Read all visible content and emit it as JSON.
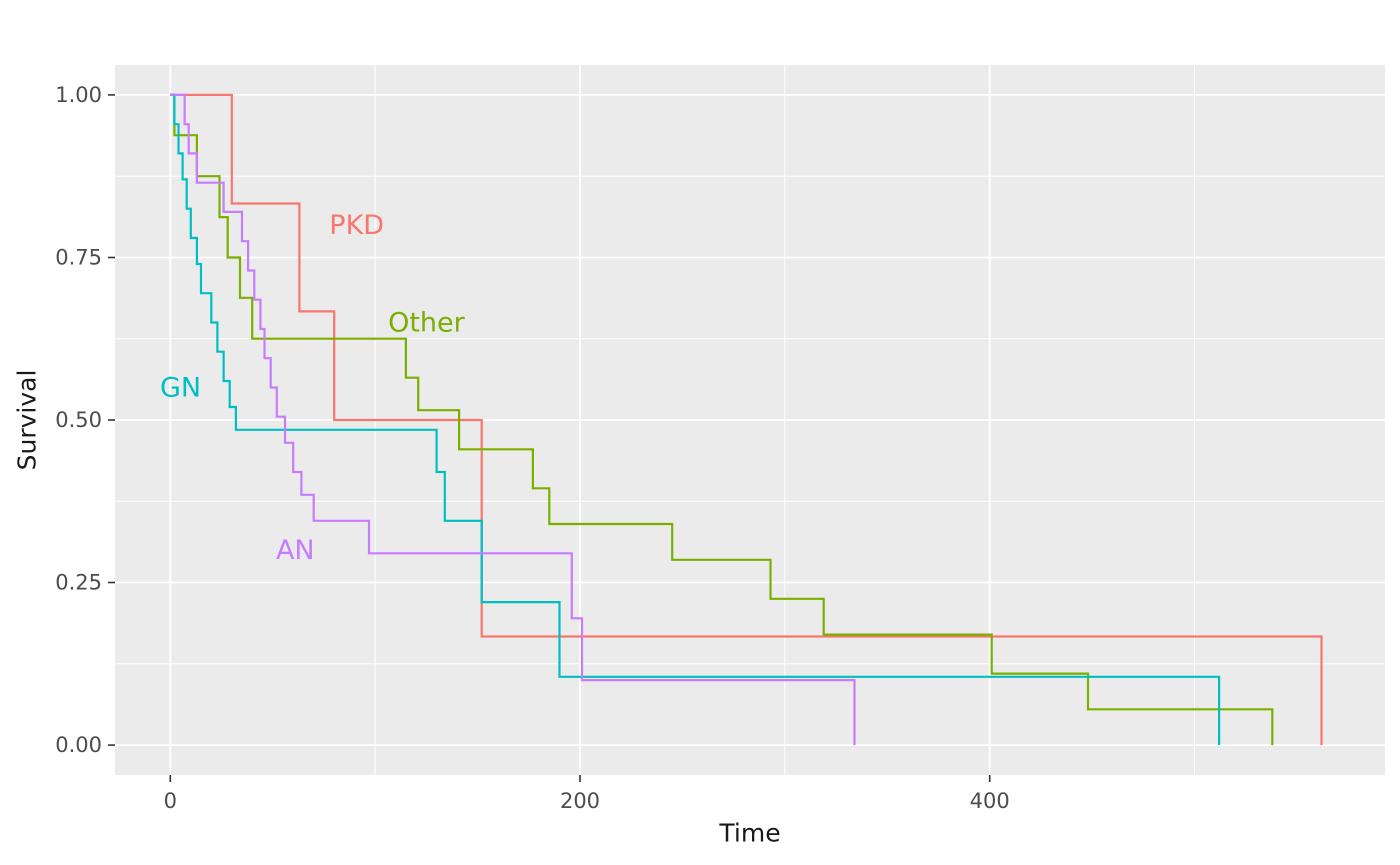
{
  "chart_data": {
    "type": "line",
    "variant": "kaplan-meier-step",
    "title": "",
    "xlabel": "Time",
    "ylabel": "Survival",
    "xlim": [
      -27,
      593
    ],
    "ylim": [
      -0.046,
      1.046
    ],
    "x_ticks": [
      0,
      200,
      400
    ],
    "x_tick_labels": [
      "0",
      "200",
      "400"
    ],
    "x_minor_ticks": [
      100,
      300,
      500
    ],
    "y_ticks": [
      0.0,
      0.25,
      0.5,
      0.75,
      1.0
    ],
    "y_tick_labels": [
      "0.00",
      "0.25",
      "0.50",
      "0.75",
      "1.00"
    ],
    "y_minor_ticks": [
      0.125,
      0.375,
      0.625,
      0.875
    ],
    "grid": true,
    "legend": "direct-labels",
    "colors": {
      "panel_bg": "#EBEBEB",
      "grid": "#FFFFFF",
      "tick_text": "#4D4D4D",
      "axis_title": "#1A1A1A",
      "tick_mark": "#333333"
    },
    "series": [
      {
        "name": "PKD",
        "color": "#F8766D",
        "label": {
          "text": "PKD",
          "t": 91,
          "s": 0.8
        },
        "points": [
          [
            0,
            1.0
          ],
          [
            30,
            0.833
          ],
          [
            63,
            0.667
          ],
          [
            80,
            0.5
          ],
          [
            152,
            0.167
          ],
          [
            562,
            0.0
          ]
        ]
      },
      {
        "name": "Other",
        "color": "#7CAE00",
        "label": {
          "text": "Other",
          "t": 125,
          "s": 0.65
        },
        "points": [
          [
            0,
            1.0
          ],
          [
            2,
            0.938
          ],
          [
            13,
            0.875
          ],
          [
            24,
            0.812
          ],
          [
            28,
            0.75
          ],
          [
            34,
            0.688
          ],
          [
            40,
            0.625
          ],
          [
            115,
            0.565
          ],
          [
            121,
            0.515
          ],
          [
            141,
            0.455
          ],
          [
            177,
            0.395
          ],
          [
            185,
            0.34
          ],
          [
            245,
            0.285
          ],
          [
            293,
            0.225
          ],
          [
            319,
            0.17
          ],
          [
            401,
            0.11
          ],
          [
            448,
            0.055
          ],
          [
            538,
            0.0
          ]
        ]
      },
      {
        "name": "GN",
        "color": "#00BFC4",
        "label": {
          "text": "GN",
          "t": 5,
          "s": 0.55
        },
        "points": [
          [
            0,
            1.0
          ],
          [
            2,
            0.955
          ],
          [
            4,
            0.91
          ],
          [
            6,
            0.87
          ],
          [
            8,
            0.825
          ],
          [
            10,
            0.78
          ],
          [
            13,
            0.74
          ],
          [
            15,
            0.695
          ],
          [
            20,
            0.65
          ],
          [
            23,
            0.605
          ],
          [
            26,
            0.56
          ],
          [
            29,
            0.52
          ],
          [
            32,
            0.485
          ],
          [
            130,
            0.42
          ],
          [
            134,
            0.345
          ],
          [
            152,
            0.22
          ],
          [
            190,
            0.105
          ],
          [
            512,
            0.0
          ]
        ]
      },
      {
        "name": "AN",
        "color": "#C77CFF",
        "label": {
          "text": "AN",
          "t": 61,
          "s": 0.3
        },
        "points": [
          [
            0,
            1.0
          ],
          [
            7,
            0.955
          ],
          [
            9,
            0.91
          ],
          [
            13,
            0.865
          ],
          [
            26,
            0.82
          ],
          [
            35,
            0.775
          ],
          [
            38,
            0.73
          ],
          [
            41,
            0.685
          ],
          [
            44,
            0.64
          ],
          [
            46,
            0.595
          ],
          [
            49,
            0.55
          ],
          [
            52,
            0.505
          ],
          [
            56,
            0.465
          ],
          [
            60,
            0.42
          ],
          [
            64,
            0.385
          ],
          [
            70,
            0.345
          ],
          [
            97,
            0.295
          ],
          [
            196,
            0.195
          ],
          [
            201,
            0.1
          ],
          [
            334,
            0.0
          ]
        ]
      }
    ]
  }
}
